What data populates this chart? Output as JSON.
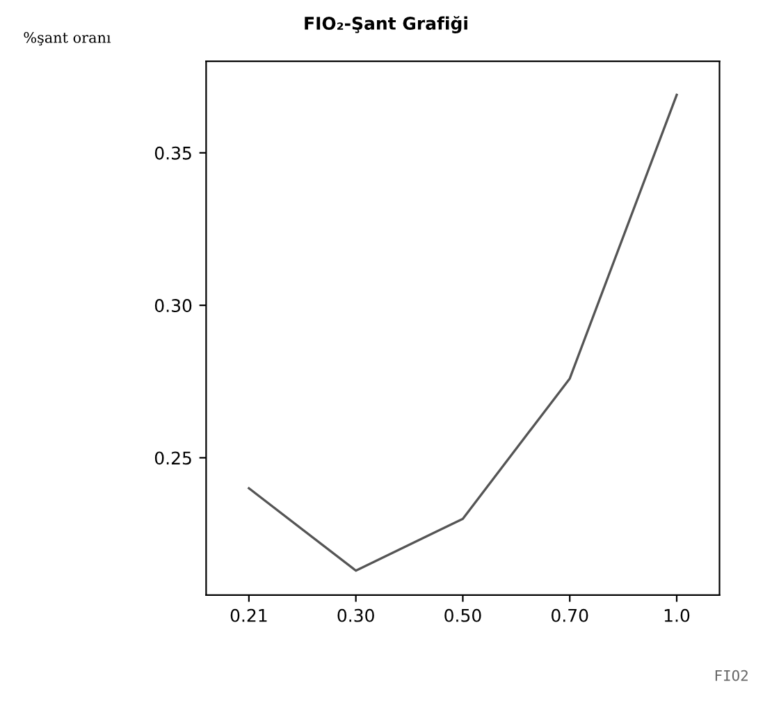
{
  "chart_data": {
    "type": "line",
    "title": "FIO₂-Şant Grafiği",
    "ylabel": "%şant oranı",
    "xlabel": "FIO2",
    "categories": [
      "0.21",
      "0.30",
      "0.50",
      "0.70",
      "1.0"
    ],
    "series": [
      {
        "color": "#555555",
        "values": [
          0.24,
          0.213,
          0.23,
          0.276,
          0.369
        ]
      }
    ],
    "ylim": [
      0.205,
      0.38
    ],
    "yticks": [
      0.25,
      {
        "value": 0.3,
        "label": "0.30"
      },
      0.35
    ],
    "grid": false,
    "legend": false,
    "marker": "none",
    "line_style": "solid"
  }
}
